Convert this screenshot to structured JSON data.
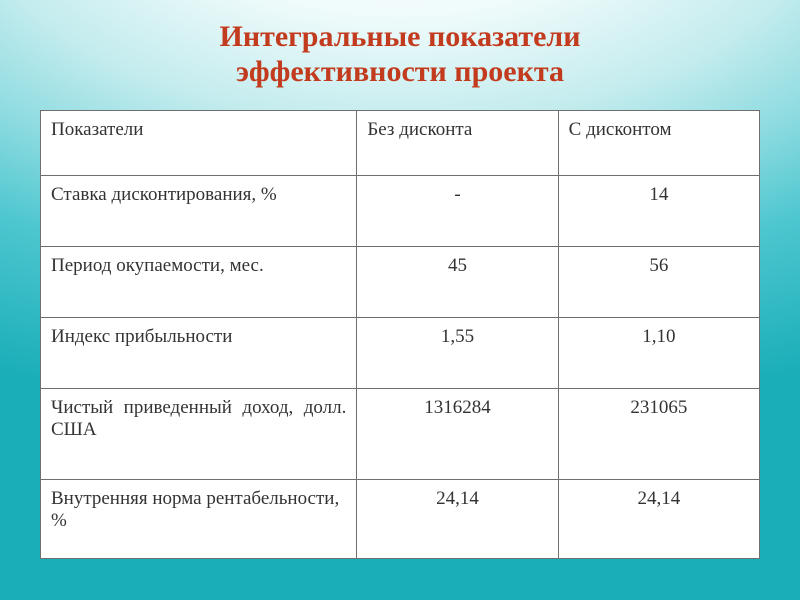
{
  "title_line1": "Интегральные показатели",
  "title_line2": "эффективности проекта",
  "table": {
    "headers": [
      "Показатели",
      "Без дисконта",
      "С дисконтом"
    ],
    "rows": [
      {
        "label": "Ставка дисконтирования, %",
        "no_disc": "-",
        "with_disc": "14"
      },
      {
        "label": "Период окупаемости, мес.",
        "no_disc": "45",
        "with_disc": "56"
      },
      {
        "label": "Индекс прибыльности",
        "no_disc": "1,55",
        "with_disc": "1,10"
      },
      {
        "label": "Чистый приведенный доход, долл. США",
        "no_disc": "1316284",
        "with_disc": "231065",
        "justify": true,
        "tall": true
      },
      {
        "label": "Внутренняя норма рентабельности, %",
        "no_disc": "24,14",
        "with_disc": "24,14"
      }
    ]
  },
  "colors": {
    "title": "#c23b1e",
    "border": "#6f6f6f",
    "text": "#333333",
    "table_bg": "#ffffff"
  }
}
